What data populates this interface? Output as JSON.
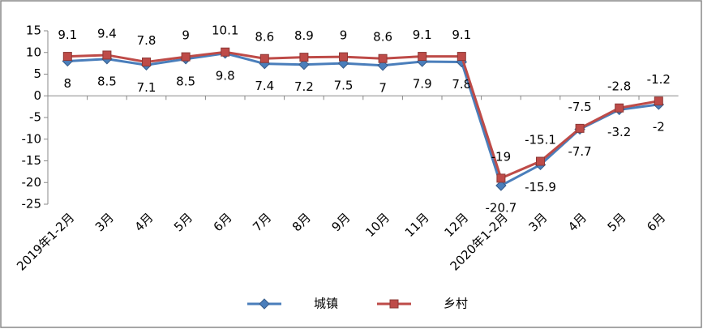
{
  "chart_data": {
    "type": "line",
    "categories": [
      "2019年1-2月",
      "3月",
      "4月",
      "5月",
      "6月",
      "7月",
      "8月",
      "9月",
      "10月",
      "11月",
      "12月",
      "2020年1-2月",
      "3月",
      "4月",
      "5月",
      "6月"
    ],
    "series": [
      {
        "name": "城镇",
        "color": "#4a7ebb",
        "marker": "diamond",
        "values": [
          8,
          8.5,
          7.1,
          8.5,
          9.8,
          7.4,
          7.2,
          7.5,
          7,
          7.9,
          7.8,
          -20.7,
          -15.9,
          -7.7,
          -3.2,
          -2
        ]
      },
      {
        "name": "乡村",
        "color": "#be4b48",
        "marker": "square",
        "values": [
          9.1,
          9.4,
          7.8,
          9,
          10.1,
          8.6,
          8.9,
          9,
          8.6,
          9.1,
          9.1,
          -19,
          -15.1,
          -7.5,
          -2.8,
          -1.2
        ]
      }
    ],
    "ylim": [
      -25,
      15
    ],
    "yticks": [
      -25,
      -20,
      -15,
      -10,
      -5,
      0,
      5,
      10,
      15
    ],
    "grid": false,
    "legend": "bottom"
  }
}
